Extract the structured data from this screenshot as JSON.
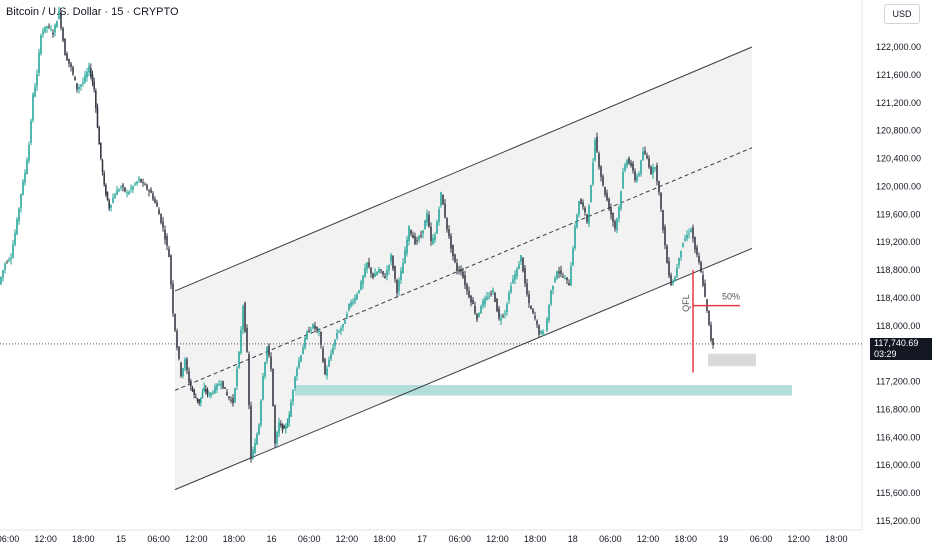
{
  "header": {
    "title": "Bitcoin / U.S. Dollar · 15 · CRYPTO",
    "currency_button": "USD"
  },
  "current_price": {
    "value": "117,740.69",
    "countdown": "03:29"
  },
  "annotations": {
    "fifty_pct": "50%",
    "qfl": "QFL"
  },
  "colors": {
    "up": "#26a69a",
    "down": "#363a45",
    "channel_fill": "#f2f2f2",
    "zone": "#b2dfd8",
    "grey_box": "#d9d9d9",
    "red": "#e53946"
  },
  "chart_data": {
    "type": "candlestick",
    "title": "Bitcoin / U.S. Dollar · 15 · CRYPTO",
    "y_ticks": [
      122000,
      121600,
      121200,
      120800,
      120400,
      120000,
      119600,
      119200,
      118800,
      118400,
      118000,
      117200,
      116800,
      116400,
      116000,
      115600,
      115200
    ],
    "y_tick_labels": [
      "122,000.00",
      "121,600.00",
      "121,200.00",
      "120,800.00",
      "120,400.00",
      "120,000.00",
      "119,600.00",
      "119,200.00",
      "118,800.00",
      "118,400.00",
      "118,000.00",
      "117,200.00",
      "116,800.00",
      "116,400.00",
      "116,000.00",
      "115,600.00",
      "115,200.00"
    ],
    "ylim": [
      115100,
      122400
    ],
    "x_tick_labels": [
      "06:00",
      "12:00",
      "18:00",
      "15",
      "06:00",
      "12:00",
      "18:00",
      "16",
      "06:00",
      "12:00",
      "18:00",
      "17",
      "06:00",
      "12:00",
      "18:00",
      "18",
      "06:00",
      "12:00",
      "18:00",
      "19",
      "06:00",
      "12:00",
      "18:00"
    ],
    "price_path": [
      [
        0,
        118600
      ],
      [
        6,
        118900
      ],
      [
        12,
        119000
      ],
      [
        18,
        119500
      ],
      [
        22,
        119900
      ],
      [
        26,
        120200
      ],
      [
        30,
        120600
      ],
      [
        34,
        121300
      ],
      [
        38,
        121600
      ],
      [
        42,
        122200
      ],
      [
        48,
        122300
      ],
      [
        54,
        122200
      ],
      [
        60,
        122500
      ],
      [
        66,
        121900
      ],
      [
        72,
        121700
      ],
      [
        78,
        121400
      ],
      [
        84,
        121500
      ],
      [
        90,
        121700
      ],
      [
        95,
        121400
      ],
      [
        100,
        120600
      ],
      [
        105,
        120000
      ],
      [
        110,
        119700
      ],
      [
        116,
        119900
      ],
      [
        122,
        120000
      ],
      [
        128,
        119900
      ],
      [
        134,
        120000
      ],
      [
        140,
        120100
      ],
      [
        146,
        120000
      ],
      [
        152,
        119900
      ],
      [
        158,
        119700
      ],
      [
        164,
        119400
      ],
      [
        170,
        119000
      ],
      [
        174,
        118200
      ],
      [
        178,
        117700
      ],
      [
        182,
        117300
      ],
      [
        186,
        117500
      ],
      [
        190,
        117200
      ],
      [
        195,
        117000
      ],
      [
        200,
        116900
      ],
      [
        205,
        117100
      ],
      [
        210,
        117000
      ],
      [
        216,
        117100
      ],
      [
        222,
        117200
      ],
      [
        228,
        117000
      ],
      [
        234,
        116900
      ],
      [
        240,
        117600
      ],
      [
        244,
        118300
      ],
      [
        248,
        117600
      ],
      [
        252,
        116100
      ],
      [
        256,
        116300
      ],
      [
        260,
        116600
      ],
      [
        264,
        117300
      ],
      [
        268,
        117700
      ],
      [
        272,
        117400
      ],
      [
        276,
        116300
      ],
      [
        280,
        116600
      ],
      [
        285,
        116500
      ],
      [
        290,
        116700
      ],
      [
        296,
        117300
      ],
      [
        302,
        117600
      ],
      [
        308,
        117900
      ],
      [
        314,
        118000
      ],
      [
        320,
        117900
      ],
      [
        326,
        117300
      ],
      [
        332,
        117600
      ],
      [
        338,
        117900
      ],
      [
        344,
        118000
      ],
      [
        350,
        118300
      ],
      [
        356,
        118400
      ],
      [
        362,
        118600
      ],
      [
        368,
        118900
      ],
      [
        374,
        118700
      ],
      [
        380,
        118800
      ],
      [
        386,
        118700
      ],
      [
        392,
        119000
      ],
      [
        398,
        118500
      ],
      [
        404,
        118900
      ],
      [
        410,
        119400
      ],
      [
        416,
        119200
      ],
      [
        422,
        119300
      ],
      [
        428,
        119600
      ],
      [
        432,
        119200
      ],
      [
        436,
        119300
      ],
      [
        442,
        119900
      ],
      [
        448,
        119400
      ],
      [
        454,
        119000
      ],
      [
        458,
        118800
      ],
      [
        462,
        118800
      ],
      [
        468,
        118500
      ],
      [
        474,
        118300
      ],
      [
        478,
        118100
      ],
      [
        482,
        118300
      ],
      [
        488,
        118400
      ],
      [
        494,
        118500
      ],
      [
        500,
        118100
      ],
      [
        506,
        118200
      ],
      [
        512,
        118600
      ],
      [
        518,
        118800
      ],
      [
        522,
        119000
      ],
      [
        526,
        118600
      ],
      [
        530,
        118300
      ],
      [
        536,
        118100
      ],
      [
        540,
        117900
      ],
      [
        546,
        117900
      ],
      [
        552,
        118500
      ],
      [
        558,
        118800
      ],
      [
        564,
        118700
      ],
      [
        570,
        118600
      ],
      [
        576,
        119400
      ],
      [
        580,
        119800
      ],
      [
        584,
        119700
      ],
      [
        588,
        119500
      ],
      [
        592,
        120000
      ],
      [
        596,
        120700
      ],
      [
        600,
        120300
      ],
      [
        604,
        120000
      ],
      [
        608,
        119800
      ],
      [
        612,
        119600
      ],
      [
        616,
        119400
      ],
      [
        620,
        119700
      ],
      [
        624,
        120200
      ],
      [
        628,
        120400
      ],
      [
        632,
        120300
      ],
      [
        636,
        120100
      ],
      [
        640,
        120200
      ],
      [
        644,
        120500
      ],
      [
        648,
        120400
      ],
      [
        652,
        120200
      ],
      [
        656,
        120300
      ],
      [
        660,
        119900
      ],
      [
        664,
        119400
      ],
      [
        668,
        118900
      ],
      [
        672,
        118600
      ],
      [
        676,
        118700
      ],
      [
        680,
        119000
      ],
      [
        684,
        119200
      ],
      [
        688,
        119300
      ],
      [
        692,
        119400
      ],
      [
        696,
        119100
      ],
      [
        700,
        118900
      ],
      [
        704,
        118600
      ],
      [
        708,
        118200
      ],
      [
        712,
        117800
      ],
      [
        714,
        117740
      ]
    ],
    "channel": {
      "lower_start": [
        175,
        115650
      ],
      "lower_end": [
        752,
        119110
      ],
      "upper_start": [
        175,
        118500
      ],
      "upper_end": [
        752,
        122000
      ]
    },
    "demand_zone": {
      "x_from": 295,
      "x_to": 792,
      "low": 117000,
      "high": 117150
    },
    "grey_box": {
      "x_from": 708,
      "x_to": 756,
      "low": 117420,
      "high": 117600
    },
    "qfl_line": {
      "x": 693,
      "from": 117330,
      "to": 118800
    },
    "fifty_line": {
      "x_from": 693,
      "x_to": 740,
      "price": 118290
    },
    "current_price": 117740.69
  }
}
